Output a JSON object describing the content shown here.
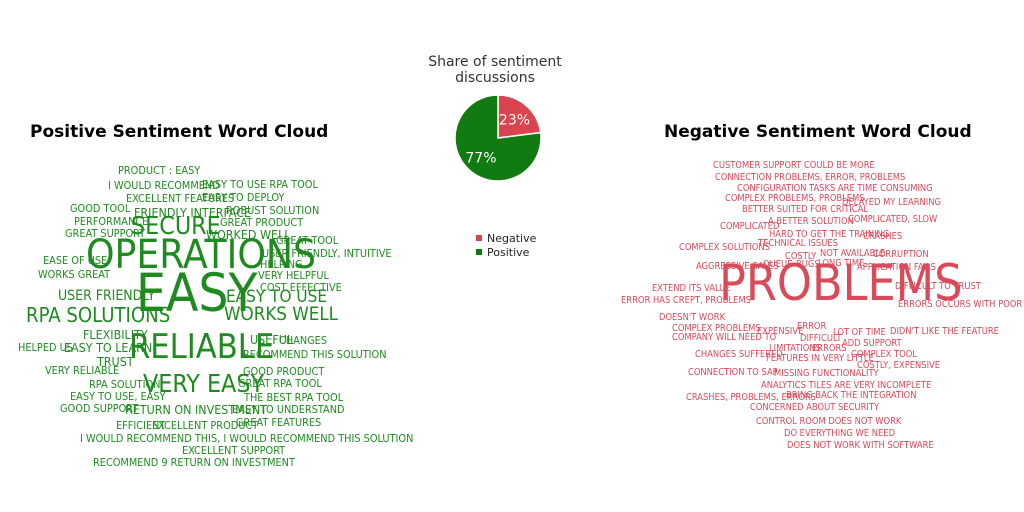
{
  "positive_cloud": {
    "title": "Positive Sentiment Word Cloud",
    "words": [
      {
        "text": "PRODUCT : EASY",
        "size": 7
      },
      {
        "text": "I WOULD RECOMMEND",
        "size": 7
      },
      {
        "text": "EASY TO USE RPA TOOL",
        "size": 7
      },
      {
        "text": "EXCELLENT FEATURES",
        "size": 7
      },
      {
        "text": "EASY TO DEPLOY",
        "size": 7
      },
      {
        "text": "GOOD TOOL",
        "size": 7
      },
      {
        "text": "FRIENDLY INTERFACE",
        "size": 8
      },
      {
        "text": "ROBUST SOLUTION",
        "size": 7
      },
      {
        "text": "PERFORMANCE",
        "size": 7
      },
      {
        "text": "GREAT PRODUCT",
        "size": 7
      },
      {
        "text": "GREAT SUPPORT",
        "size": 7
      },
      {
        "text": "SECURE",
        "size": 16
      },
      {
        "text": "WORKED WELL",
        "size": 8
      },
      {
        "text": "GREAT TOOL",
        "size": 7
      },
      {
        "text": "USER FRIENDLY, INTUITIVE",
        "size": 7
      },
      {
        "text": "EASE OF USE",
        "size": 7
      },
      {
        "text": "OPERATIONS",
        "size": 26
      },
      {
        "text": "HELPING",
        "size": 7
      },
      {
        "text": "WORKS GREAT",
        "size": 7
      },
      {
        "text": "VERY HELPFUL",
        "size": 7
      },
      {
        "text": "COST EFFECTIVE",
        "size": 7
      },
      {
        "text": "USER FRIENDLY",
        "size": 9
      },
      {
        "text": "EASY",
        "size": 34
      },
      {
        "text": "EASY TO USE",
        "size": 11
      },
      {
        "text": "RPA SOLUTIONS",
        "size": 13
      },
      {
        "text": "WORKS WELL",
        "size": 12
      },
      {
        "text": "FLEXIBILITY",
        "size": 8
      },
      {
        "text": "USEFUL",
        "size": 8
      },
      {
        "text": "CHANGES",
        "size": 7
      },
      {
        "text": "HELPED US",
        "size": 7
      },
      {
        "text": "EASY TO LEARN",
        "size": 8
      },
      {
        "text": "RELIABLE",
        "size": 22
      },
      {
        "text": "RECOMMEND THIS SOLUTION",
        "size": 7
      },
      {
        "text": "TRUST",
        "size": 8
      },
      {
        "text": "VERY RELIABLE",
        "size": 7
      },
      {
        "text": "GOOD PRODUCT",
        "size": 7
      },
      {
        "text": "RPA SOLUTION",
        "size": 7
      },
      {
        "text": "VERY EASY",
        "size": 16
      },
      {
        "text": "GREAT RPA TOOL",
        "size": 7
      },
      {
        "text": "EASY TO USE, EASY",
        "size": 7
      },
      {
        "text": "THE BEST RPA TOOL",
        "size": 7
      },
      {
        "text": "GOOD SUPPORT",
        "size": 7
      },
      {
        "text": "RETURN ON INVESTMENT",
        "size": 8
      },
      {
        "text": "EASY TO UNDERSTAND",
        "size": 7
      },
      {
        "text": "GREAT FEATURES",
        "size": 7
      },
      {
        "text": "EFFICIENT",
        "size": 7
      },
      {
        "text": "EXCELLENT PRODUCT",
        "size": 7
      },
      {
        "text": "I WOULD RECOMMEND THIS, I WOULD RECOMMEND THIS SOLUTION",
        "size": 7
      },
      {
        "text": "EXCELLENT SUPPORT",
        "size": 7
      },
      {
        "text": "RECOMMEND 9 RETURN ON INVESTMENT",
        "size": 7
      }
    ]
  },
  "negative_cloud": {
    "title": "Negative Sentiment Word Cloud",
    "words": [
      {
        "text": "CUSTOMER SUPPORT COULD BE MORE",
        "size": 6
      },
      {
        "text": "CONNECTION PROBLEMS, ERROR, PROBLEMS",
        "size": 6
      },
      {
        "text": "CONFIGURATION TASKS ARE TIME CONSUMING",
        "size": 6
      },
      {
        "text": "COMPLEX PROBLEMS, PROBLEMS",
        "size": 6
      },
      {
        "text": "DELAYED MY LEARNING",
        "size": 6
      },
      {
        "text": "BETTER SUITED FOR CRITICAL",
        "size": 6
      },
      {
        "text": "COMPLICATED, SLOW",
        "size": 6
      },
      {
        "text": "COMPLICATED",
        "size": 6
      },
      {
        "text": "A BETTER SOLUTION",
        "size": 6
      },
      {
        "text": "HARD TO GET THE TRAINING",
        "size": 6
      },
      {
        "text": "CRASHES",
        "size": 6
      },
      {
        "text": "COMPLEX SOLUTIONS",
        "size": 6
      },
      {
        "text": "TECHNICAL ISSUES",
        "size": 6
      },
      {
        "text": "NOT AVAILABLE",
        "size": 6
      },
      {
        "text": "CORRUPTION",
        "size": 6
      },
      {
        "text": "COSTLY",
        "size": 6
      },
      {
        "text": "AGGRESSIVE SALES",
        "size": 6
      },
      {
        "text": "QUEUE",
        "size": 6
      },
      {
        "text": "BUGS",
        "size": 6
      },
      {
        "text": "LONG TIME",
        "size": 6
      },
      {
        "text": "APPLICATION FAILS",
        "size": 6
      },
      {
        "text": "EXTEND ITS VALUE",
        "size": 6
      },
      {
        "text": "PROBLEMS",
        "size": 32
      },
      {
        "text": "DIFFICULT TO TRUST",
        "size": 6
      },
      {
        "text": "ERROR HAS CREPT, PROBLEMS",
        "size": 6
      },
      {
        "text": "ERRORS OCCURS WITH POOR",
        "size": 6
      },
      {
        "text": "DOESN'T WORK",
        "size": 6
      },
      {
        "text": "COMPLEX PROBLEMS",
        "size": 6
      },
      {
        "text": "ERROR",
        "size": 6
      },
      {
        "text": "EXPENSIVE",
        "size": 6
      },
      {
        "text": "LOT OF TIME",
        "size": 6
      },
      {
        "text": "DIDN'T LIKE THE FEATURE",
        "size": 6
      },
      {
        "text": "COMPANY WILL NEED TO",
        "size": 6
      },
      {
        "text": "DIFFICULT",
        "size": 6
      },
      {
        "text": "ADD SUPPORT",
        "size": 6
      },
      {
        "text": "LIMITATIONS",
        "size": 6
      },
      {
        "text": "ERRORS",
        "size": 6
      },
      {
        "text": "CHANGES SUFFERED",
        "size": 6
      },
      {
        "text": "FEATURES IN VERY LITTLE",
        "size": 6
      },
      {
        "text": "COMPLEX TOOL",
        "size": 6
      },
      {
        "text": "COSTLY, EXPENSIVE",
        "size": 6
      },
      {
        "text": "CONNECTION TO SAP",
        "size": 6
      },
      {
        "text": "MISSING FUNCTIONALITY",
        "size": 6
      },
      {
        "text": "ANALYTICS TILES ARE VERY INCOMPLETE",
        "size": 6
      },
      {
        "text": "CRASHES, PROBLEMS, ERRORS",
        "size": 6
      },
      {
        "text": "BRING BACK THE INTEGRATION",
        "size": 6
      },
      {
        "text": "CONCERNED ABOUT SECURITY",
        "size": 6
      },
      {
        "text": "CONTROL ROOM DOES NOT WORK",
        "size": 6
      },
      {
        "text": "DO EVERYTHING WE NEED",
        "size": 6
      },
      {
        "text": "DOES NOT WORK WITH SOFTWARE",
        "size": 6
      }
    ]
  },
  "chart_data": {
    "type": "pie",
    "title": [
      "Share of sentiment",
      "discussions"
    ],
    "slices": [
      {
        "label": "Negative",
        "value": 23,
        "display": "23%",
        "color": "#d9444f"
      },
      {
        "label": "Positive",
        "value": 77,
        "display": "77%",
        "color": "#117a11"
      }
    ],
    "legend_position": "bottom"
  }
}
